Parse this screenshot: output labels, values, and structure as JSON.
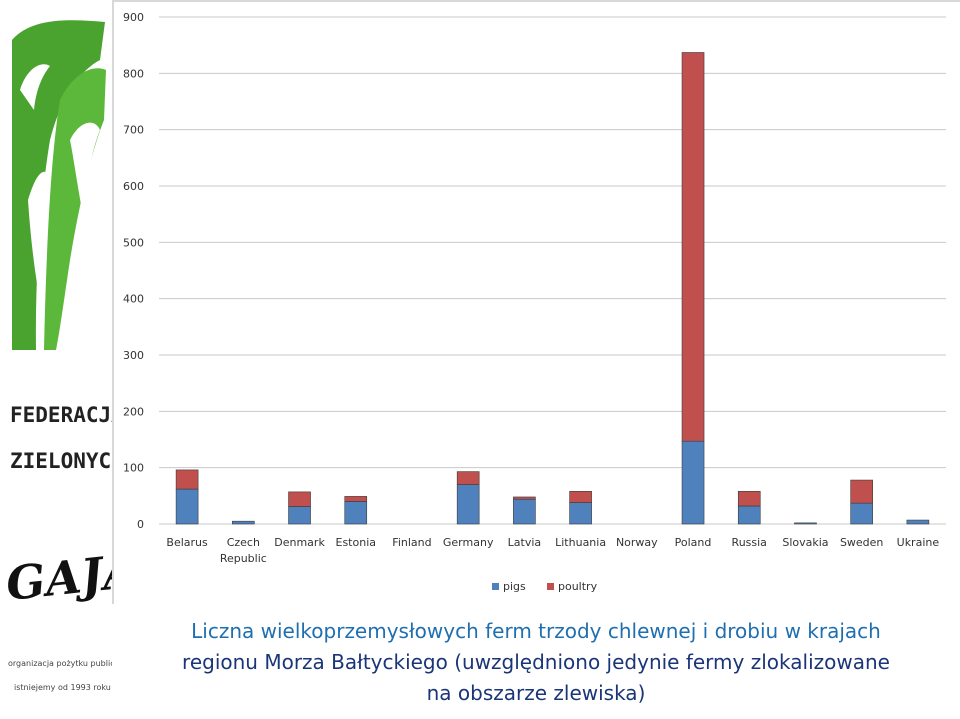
{
  "logo": {
    "title_line1": "FEDERACJA",
    "title_line2": "ZIELONYCH",
    "brand": "GAJA",
    "note_line1": "organizacja pożytku publicznego",
    "note_line2": "istniejemy od 1993 roku",
    "green": "#49a32e"
  },
  "chart_data": {
    "type": "bar",
    "stacked": true,
    "categories": [
      "Belarus",
      "Czech Republic",
      "Denmark",
      "Estonia",
      "Finland",
      "Germany",
      "Latvia",
      "Lithuania",
      "Norway",
      "Poland",
      "Russia",
      "Slovakia",
      "Sweden",
      "Ukraine"
    ],
    "category_lines": [
      [
        "Belarus"
      ],
      [
        "Czech",
        "Republic"
      ],
      [
        "Denmark"
      ],
      [
        "Estonia"
      ],
      [
        "Finland"
      ],
      [
        "Germany"
      ],
      [
        "Latvia"
      ],
      [
        "Lithuania"
      ],
      [
        "Norway"
      ],
      [
        "Poland"
      ],
      [
        "Russia"
      ],
      [
        "Slovakia"
      ],
      [
        "Sweden"
      ],
      [
        "Ukraine"
      ]
    ],
    "series": [
      {
        "name": "pigs",
        "color": "#4f81bd",
        "values": [
          62,
          5,
          31,
          40,
          0,
          70,
          44,
          38,
          0,
          147,
          32,
          2,
          37,
          7
        ]
      },
      {
        "name": "poultry",
        "color": "#c0504d",
        "values": [
          34,
          0,
          26,
          9,
          0,
          23,
          4,
          20,
          0,
          690,
          26,
          0,
          41,
          0
        ]
      }
    ],
    "ylim": [
      0,
      900
    ],
    "yticks": [
      0,
      100,
      200,
      300,
      400,
      500,
      600,
      700,
      800,
      900
    ],
    "grid": true,
    "legend": "bottom"
  },
  "caption": {
    "line1": "Liczna wielkoprzemysłowych ferm trzody chlewnej i drobiu w krajach",
    "line2": "regionu Morza Bałtyckiego (uwzględniono jedynie fermy zlokalizowane",
    "line3": "na obszarze zlewiska)"
  }
}
